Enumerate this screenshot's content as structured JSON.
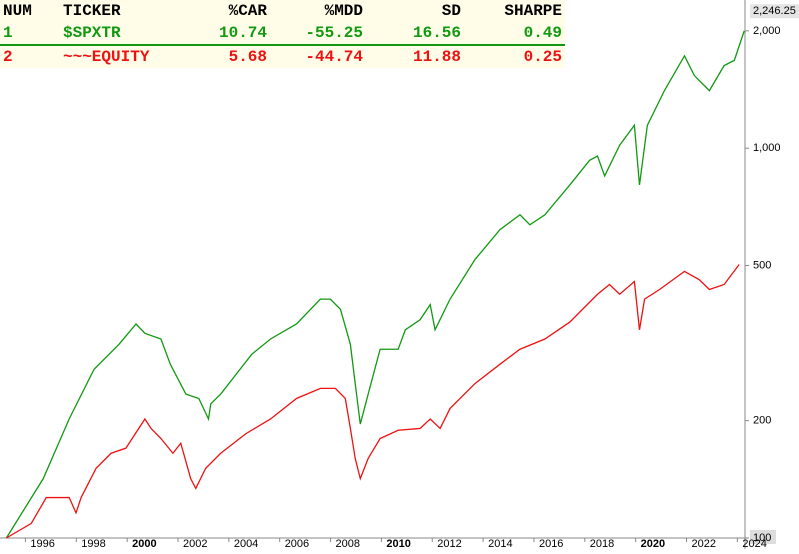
{
  "chart_data": {
    "type": "line",
    "log_scale": true,
    "grid": false,
    "xlim": [
      1995,
      2024.3
    ],
    "xticks": [
      1996,
      1998,
      2000,
      2002,
      2004,
      2006,
      2008,
      2010,
      2012,
      2014,
      2016,
      2018,
      2020,
      2022,
      2024
    ],
    "bold_xticks": [
      2000,
      2010,
      2020
    ],
    "ylim": [
      100,
      2400
    ],
    "yticks": [
      100,
      200,
      500,
      {
        "value": 1000,
        "label": "1,000"
      },
      {
        "value": 2000,
        "label": "2,000"
      }
    ],
    "last_value": {
      "value": 2246.25,
      "label": "2,246.25"
    },
    "series": [
      {
        "color": "#119911",
        "x": [
          1995.25,
          1996.7,
          1997.72,
          1998.7,
          1999.68,
          2000.35,
          2000.7,
          2001.33,
          2001.7,
          2002.31,
          2002.82,
          2003.2,
          2003.29,
          2003.68,
          2004.9,
          2005.64,
          2006.66,
          2007.6,
          2007.99,
          2008.39,
          2008.78,
          2008.97,
          2009.17,
          2009.48,
          2009.95,
          2010.66,
          2010.94,
          2011.52,
          2011.92,
          2012.11,
          2012.7,
          2013.68,
          2014.66,
          2015.45,
          2015.84,
          2016.43,
          2017.41,
          2018.19,
          2018.5,
          2018.78,
          2019.37,
          2019.95,
          2020.15,
          2020.46,
          2021.13,
          2021.92,
          2022.31,
          2022.9,
          2023.48,
          2023.88,
          2024.27
        ],
        "values": [
          100,
          142,
          202,
          271,
          314,
          354,
          335,
          324,
          279,
          234,
          228,
          202,
          221,
          234,
          296,
          324,
          354,
          410,
          410,
          386,
          314,
          249,
          196,
          234,
          305,
          305,
          342,
          363,
          397,
          342,
          410,
          518,
          618,
          675,
          636,
          675,
          805,
          931,
          955,
          849,
          1018,
          1145,
          805,
          1145,
          1405,
          1726,
          1535,
          1405,
          1630,
          1680,
          2000
        ]
      },
      {
        "color": "#ee1111",
        "x": [
          1995.25,
          1996.23,
          1996.82,
          1997.72,
          1997.99,
          1998.19,
          1998.78,
          1999.37,
          1999.95,
          2000.7,
          2000.94,
          2001.33,
          2001.8,
          2002.11,
          2002.5,
          2002.7,
          2003.09,
          2003.68,
          2004.66,
          2005.64,
          2006.66,
          2007.6,
          2008.19,
          2008.58,
          2008.78,
          2008.97,
          2009.17,
          2009.48,
          2009.95,
          2010.66,
          2011.52,
          2011.92,
          2012.31,
          2012.7,
          2013.68,
          2014.66,
          2015.45,
          2016.43,
          2017.41,
          2018.5,
          2018.97,
          2019.37,
          2019.95,
          2020.15,
          2020.35,
          2020.94,
          2021.92,
          2022.5,
          2022.9,
          2023.48,
          2024.07
        ],
        "values": [
          100,
          109,
          127,
          127,
          116,
          127,
          151,
          165,
          170,
          202,
          191,
          180,
          165,
          175,
          142,
          134,
          151,
          165,
          185,
          202,
          228,
          242,
          242,
          228,
          191,
          160,
          142,
          160,
          180,
          189,
          191,
          202,
          191,
          215,
          249,
          279,
          305,
          324,
          358,
          422,
          447,
          422,
          455,
          342,
          410,
          434,
          483,
          460,
          434,
          447,
          503
        ]
      }
    ]
  },
  "table": {
    "header": [
      "NUM",
      "TICKER",
      "%CAR",
      "%MDD",
      "SD",
      "SHARPE"
    ],
    "row_colors": [
      "#119911",
      "#ee1111"
    ],
    "rows": [
      [
        1,
        "$SPXTR",
        10.74,
        -55.25,
        16.56,
        0.49
      ],
      [
        2,
        "~~~EQUITY",
        5.68,
        -44.74,
        11.88,
        0.25
      ]
    ]
  }
}
